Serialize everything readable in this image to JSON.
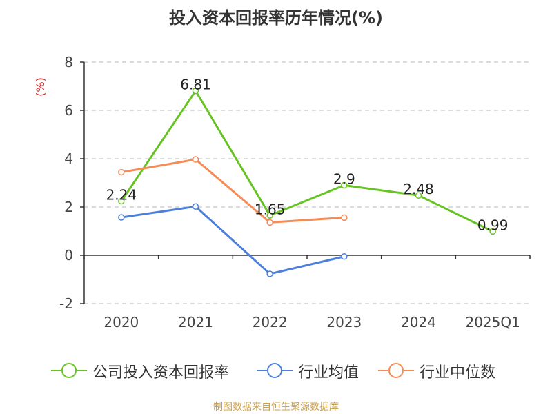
{
  "title": "投入资本回报率历年情况(%)",
  "source_note": "制图数据来自恒生聚源数据库",
  "chart_data": {
    "type": "line",
    "title": "投入资本回报率历年情况(%)",
    "ylabel": "(%)",
    "xlabel": "",
    "categories": [
      "2020",
      "2021",
      "2022",
      "2023",
      "2024",
      "2025Q1"
    ],
    "ylim": [
      -2,
      8
    ],
    "yticks": [
      -2,
      0,
      2,
      4,
      6,
      8
    ],
    "grid": true,
    "legend_position": "bottom",
    "series": [
      {
        "name": "公司投入资本回报率",
        "color": "#66c322",
        "values": [
          2.24,
          6.81,
          1.65,
          2.9,
          2.48,
          0.99
        ],
        "labels": [
          "2.24",
          "6.81",
          "1.65",
          "2.9",
          "2.48",
          "0.99"
        ]
      },
      {
        "name": "行业均值",
        "color": "#4b7fdb",
        "values": [
          1.57,
          2.02,
          -0.77,
          -0.05,
          null,
          null
        ]
      },
      {
        "name": "行业中位数",
        "color": "#f58b55",
        "values": [
          3.44,
          3.97,
          1.36,
          1.56,
          null,
          null
        ]
      }
    ]
  }
}
